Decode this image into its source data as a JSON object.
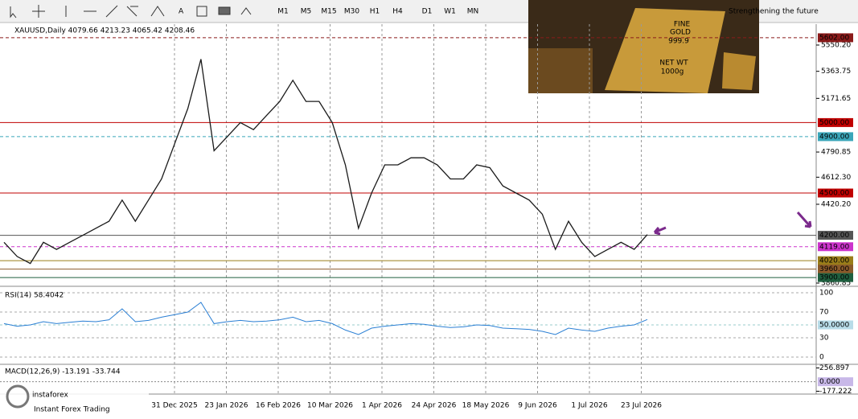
{
  "toolbar": {
    "timeframes": [
      "M1",
      "M5",
      "M15",
      "M30",
      "H1",
      "H4",
      "D1",
      "W1",
      "MN"
    ]
  },
  "banner": {
    "tagline": "Strengthening the future",
    "bar_line1": "FINE",
    "bar_line2": "GOLD",
    "bar_line3": "999.9",
    "bar_line4": "NET WT",
    "bar_line5": "1000g"
  },
  "price_chart": {
    "header": "XAUUSD,Daily  4079.66 4213.23 4065.42 4208.46",
    "ylim": [
      3843.7,
      5698.6
    ],
    "yticks": [
      {
        "value": 5550.2,
        "label": "5550.20"
      },
      {
        "value": 5363.75,
        "label": "5363.75"
      },
      {
        "value": 5171.65,
        "label": "5171.65"
      },
      {
        "value": 4790.85,
        "label": "4790.85"
      },
      {
        "value": 4612.3,
        "label": "4612.30"
      },
      {
        "value": 4420.2,
        "label": "4420.20"
      },
      {
        "value": 3860.85,
        "label": "3860.85"
      }
    ],
    "levels": [
      {
        "value": 5602,
        "label": "5602.00",
        "color": "#8b1a1a",
        "dash": true
      },
      {
        "value": 5000,
        "label": "5000.00",
        "color": "#c00000",
        "dash": false
      },
      {
        "value": 4900,
        "label": "4900.00",
        "color": "#3aa6b9",
        "dash": true
      },
      {
        "value": 4500,
        "label": "4500.00",
        "color": "#c00000",
        "dash": false
      },
      {
        "value": 4200,
        "label": "4200.00",
        "color": "#555555",
        "dash": false
      },
      {
        "value": 4119,
        "label": "4119.00",
        "color": "#cc33cc",
        "dash": true
      },
      {
        "value": 4020,
        "label": "4020.00",
        "color": "#9a7d1a",
        "dash": false
      },
      {
        "value": 3960,
        "label": "3960.00",
        "color": "#8b5a2b",
        "dash": false
      },
      {
        "value": 3900,
        "label": "3900.00",
        "color": "#1f5f3f",
        "dash": false
      }
    ],
    "close": [
      4150,
      4050,
      4000,
      4150,
      4100,
      4150,
      4200,
      4250,
      4300,
      4450,
      4300,
      4450,
      4600,
      4850,
      5100,
      5450,
      4800,
      4900,
      5000,
      4950,
      5050,
      5150,
      5300,
      5150,
      5150,
      5000,
      4700,
      4250,
      4500,
      4700,
      4700,
      4750,
      4750,
      4700,
      4600,
      4600,
      4700,
      4680,
      4550,
      4500,
      4450,
      4350,
      4100,
      4300,
      4150,
      4050,
      4100,
      4150,
      4100,
      4205
    ],
    "dates": [
      "31 Dec 2025",
      "23 Jan 2026",
      "16 Feb 2026",
      "10 Mar 2026",
      "1 Apr 2026",
      "24 Apr 2026",
      "18 May 2026",
      "9 Jun 2026",
      "1 Jul 2026",
      "23 Jul 2026"
    ]
  },
  "rsi": {
    "header": "RSI(14) 58.4042",
    "ylim": [
      0,
      100
    ],
    "yticks": [
      100,
      70,
      {
        "value": 50,
        "label": "50.0000"
      },
      30,
      0
    ],
    "values": [
      52,
      48,
      50,
      55,
      52,
      54,
      56,
      55,
      58,
      75,
      55,
      57,
      62,
      66,
      70,
      85,
      52,
      55,
      57,
      55,
      56,
      58,
      62,
      55,
      57,
      52,
      42,
      35,
      45,
      48,
      50,
      52,
      51,
      48,
      46,
      47,
      50,
      49,
      45,
      44,
      43,
      40,
      35,
      45,
      42,
      40,
      45,
      48,
      50,
      58.4
    ]
  },
  "macd": {
    "header": "MACD(12,26,9) -13.191 -33.744",
    "yticks": [
      {
        "value": 256.897,
        "label": "256.897"
      },
      {
        "value": 0,
        "label": "0.000"
      },
      {
        "value": -177.222,
        "label": "-177.222"
      }
    ],
    "ylim": [
      -200,
      280
    ]
  },
  "logo": {
    "name": "instaforex",
    "tagline": "Instant Forex Trading"
  }
}
